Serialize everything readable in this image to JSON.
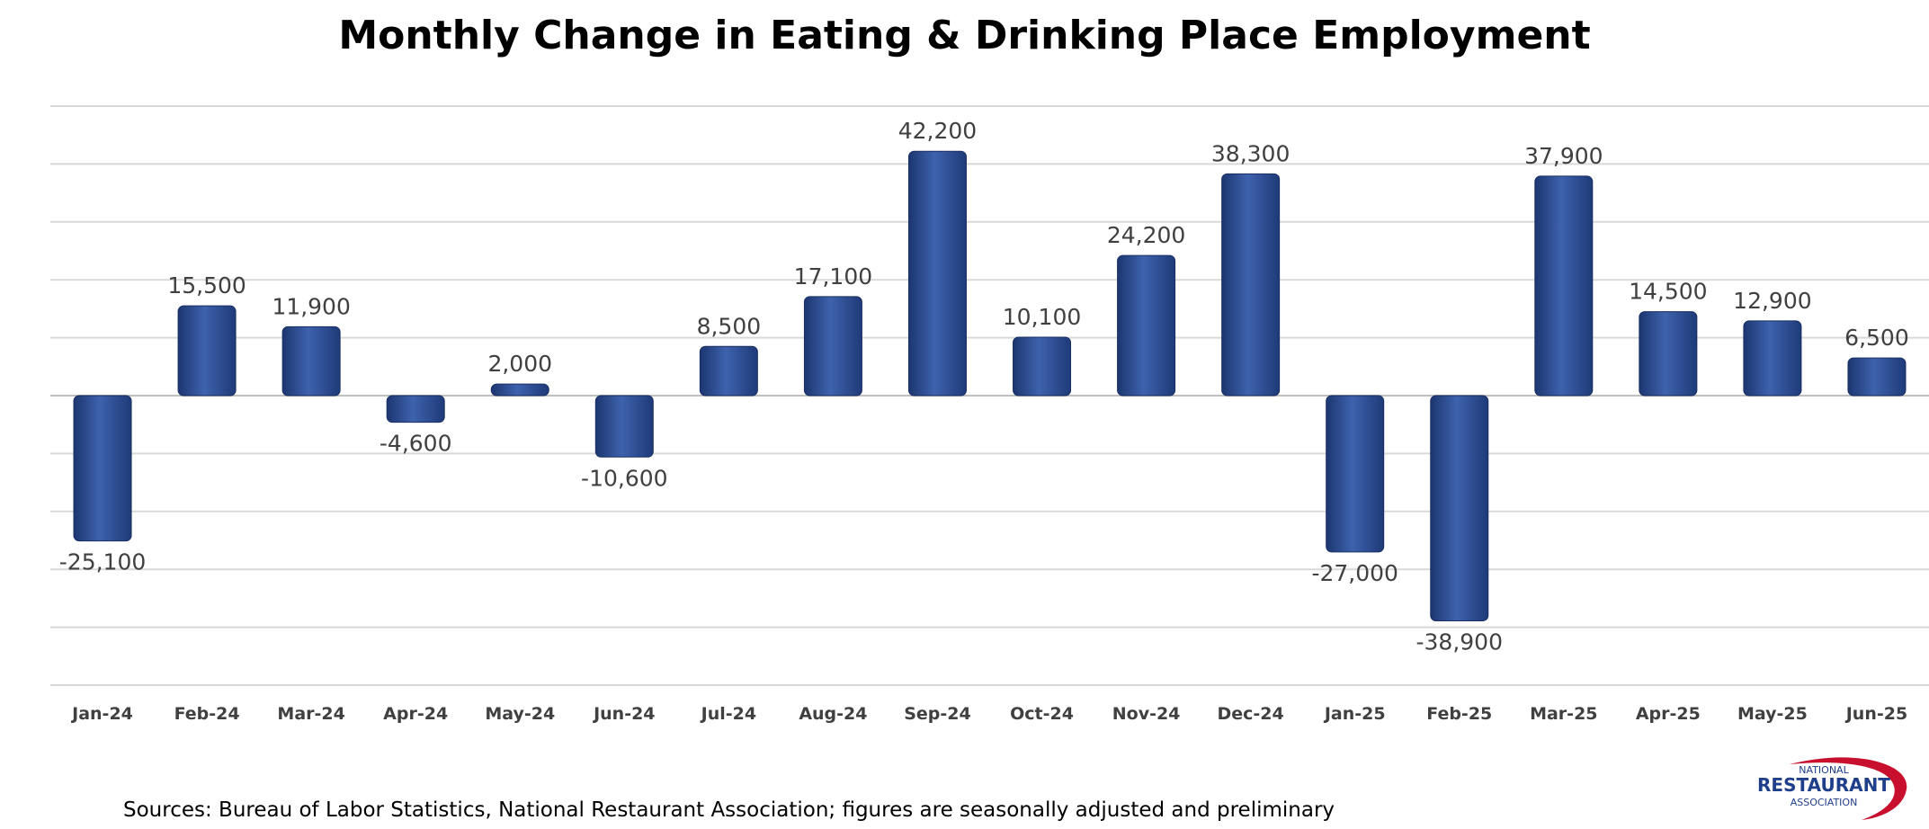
{
  "chart_data": {
    "type": "bar",
    "title": "Monthly Change in Eating & Drinking Place Employment",
    "categories": [
      "Jan-24",
      "Feb-24",
      "Mar-24",
      "Apr-24",
      "May-24",
      "Jun-24",
      "Jul-24",
      "Aug-24",
      "Sep-24",
      "Oct-24",
      "Nov-24",
      "Dec-24",
      "Jan-25",
      "Feb-25",
      "Mar-25",
      "Apr-25",
      "May-25",
      "Jun-25"
    ],
    "values": [
      -25100,
      15500,
      11900,
      -4600,
      2000,
      -10600,
      8500,
      17100,
      42200,
      10100,
      24200,
      38300,
      -27000,
      -38900,
      37900,
      14500,
      12900,
      6500
    ],
    "data_labels": [
      "-25,100",
      "15,500",
      "11,900",
      "-4,600",
      "2,000",
      "-10,600",
      "8,500",
      "17,100",
      "42,200",
      "10,100",
      "24,200",
      "38,300",
      "-27,000",
      "-38,900",
      "37,900",
      "14,500",
      "12,900",
      "6,500"
    ],
    "ylim": [
      -50000,
      50000
    ],
    "gridlines": [
      -50000,
      -40000,
      -30000,
      -20000,
      -10000,
      0,
      10000,
      20000,
      30000,
      40000,
      50000
    ],
    "grid": true,
    "bar_color": "#2e4f96",
    "legend": "none"
  },
  "footer": {
    "source": "Sources: Bureau of Labor Statistics, National Restaurant Association; figures are seasonally adjusted and preliminary"
  },
  "logo": {
    "line1": "NATIONAL",
    "line2": "RESTAURANT",
    "line3": "ASSOCIATION",
    "color": "#1f3f8a",
    "accent": "#c8102e"
  }
}
